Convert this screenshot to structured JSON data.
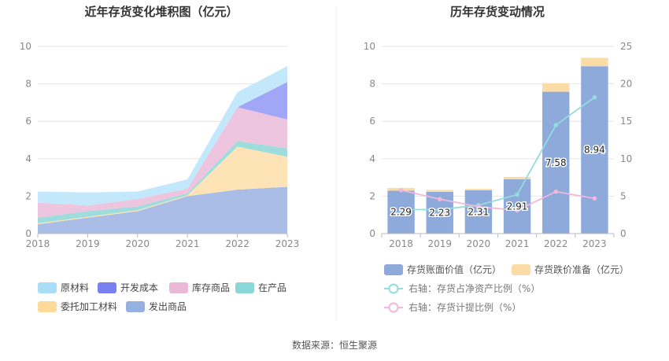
{
  "source_text": "数据来源：恒生聚源",
  "chart_data": [
    {
      "type": "area",
      "stacked": true,
      "title": "近年存货变化堆积图（亿元）",
      "x": [
        "2018",
        "2019",
        "2020",
        "2021",
        "2022",
        "2023"
      ],
      "ylim": [
        0,
        10
      ],
      "yticks": [
        0,
        2,
        4,
        6,
        8,
        10
      ],
      "grid": true,
      "legend_position": "bottom",
      "series": [
        {
          "name": "发出商品",
          "color": "#a9bde6",
          "values": [
            0.5,
            0.85,
            1.2,
            2.0,
            2.35,
            2.5
          ]
        },
        {
          "name": "委托加工材料",
          "color": "#fde3b5",
          "values": [
            0.05,
            0.05,
            0.05,
            0.05,
            2.3,
            1.6
          ]
        },
        {
          "name": "在产品",
          "color": "#9fdcdc",
          "values": [
            0.3,
            0.3,
            0.2,
            0.1,
            0.3,
            0.45
          ]
        },
        {
          "name": "库存商品",
          "color": "#eec5de",
          "values": [
            0.8,
            0.3,
            0.4,
            0.25,
            1.8,
            1.55
          ]
        },
        {
          "name": "开发成本",
          "color": "#a2a6f6",
          "values": [
            0,
            0,
            0,
            0,
            0,
            2.0
          ]
        },
        {
          "name": "原材料",
          "color": "#c4e8fb",
          "values": [
            0.6,
            0.7,
            0.4,
            0.5,
            0.8,
            0.85
          ]
        }
      ],
      "legend": [
        {
          "name": "原材料",
          "color": "#a9def8"
        },
        {
          "name": "开发成本",
          "color": "#7a7ff0"
        },
        {
          "name": "库存商品",
          "color": "#ebb9d8"
        },
        {
          "name": "在产品",
          "color": "#8bd6d6"
        },
        {
          "name": "委托加工材料",
          "color": "#fdd99a"
        },
        {
          "name": "发出商品",
          "color": "#94b1e0"
        }
      ]
    },
    {
      "type": "bar",
      "stacked": true,
      "title": "历年存货变动情况",
      "categories": [
        "2018",
        "2019",
        "2020",
        "2021",
        "2022",
        "2023"
      ],
      "ylim": [
        0,
        10
      ],
      "yticks": [
        0,
        2,
        4,
        6,
        8,
        10
      ],
      "y2lim": [
        0,
        25
      ],
      "y2ticks": [
        0,
        5,
        10,
        15,
        20,
        25
      ],
      "grid": true,
      "legend_position": "bottom",
      "series": [
        {
          "name": "存货账面价值（亿元）",
          "axis": "left",
          "color": "#8eaadb",
          "values": [
            2.29,
            2.23,
            2.31,
            2.91,
            7.58,
            8.94
          ],
          "labels": [
            "2.29",
            "2.23",
            "2.31",
            "2.91",
            "7.58",
            "8.94"
          ]
        },
        {
          "name": "存货跌价准备（亿元）",
          "axis": "left",
          "color": "#fbdca6",
          "values": [
            0.15,
            0.1,
            0.08,
            0.12,
            0.45,
            0.45
          ]
        },
        {
          "name": "右轴：存货占净资产比例（%）",
          "axis": "right",
          "kind": "line",
          "color": "#93dcdf",
          "values": [
            3.2,
            3.2,
            3.8,
            5.2,
            14.5,
            18.2
          ]
        },
        {
          "name": "右轴：存货计提比例（%）",
          "axis": "right",
          "kind": "line",
          "color": "#efb8dc",
          "values": [
            5.8,
            4.6,
            3.6,
            3.1,
            5.6,
            4.7
          ]
        }
      ]
    }
  ]
}
